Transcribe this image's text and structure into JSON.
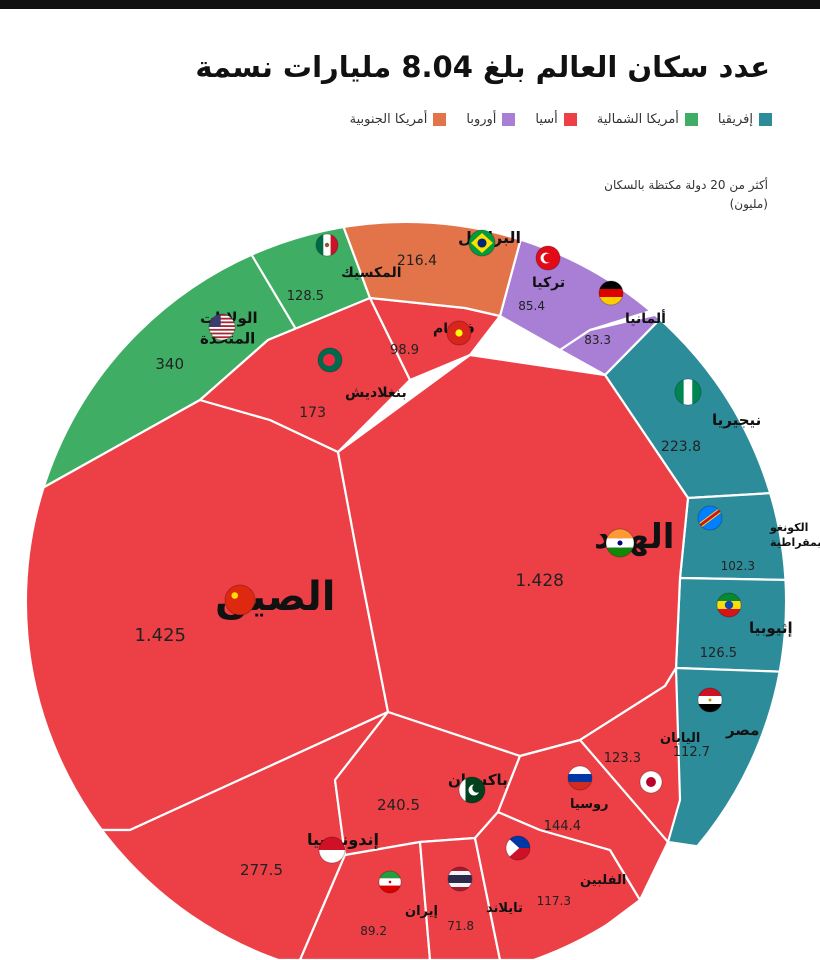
{
  "title": "عدد سكان العالم بلغ 8.04 مليارات نسمة",
  "note": "أكثر من 20 دولة مكتظة بالسكان (مليون)",
  "colors": {
    "africa": "#2d8c9a",
    "north_america": "#3fae64",
    "asia": "#ec3f46",
    "europe": "#a97fd6",
    "south_america": "#e3744a"
  },
  "legend": [
    {
      "label": "إفريقيا",
      "color": "#2d8c9a"
    },
    {
      "label": "أمريكا الشمالية",
      "color": "#3fae64"
    },
    {
      "label": "أسيا",
      "color": "#ec3f46"
    },
    {
      "label": "أوروبا",
      "color": "#a97fd6"
    },
    {
      "label": "أمريكا الجنوبية",
      "color": "#e3744a"
    }
  ],
  "chart_data": {
    "type": "voronoi-treemap",
    "title": "عدد سكان العالم بلغ 8.04 مليارات نسمة",
    "unit": "مليون",
    "series": [
      {
        "name": "إفريقيا",
        "items": [
          {
            "country": "نيجيريا",
            "value": "223.8",
            "flag": "nigeria-flag"
          },
          {
            "country": "الكونغو الديمقراطية",
            "value": "102.3",
            "flag": "dr-congo-flag"
          },
          {
            "country": "إثيوبيا",
            "value": "126.5",
            "flag": "ethiopia-flag"
          },
          {
            "country": "مصر",
            "value": "112.7",
            "flag": "egypt-flag"
          }
        ]
      },
      {
        "name": "أمريكا الشمالية",
        "items": [
          {
            "country": "الولايات المتحدة",
            "value": "340",
            "flag": "usa-flag"
          },
          {
            "country": "المكسيك",
            "value": "128.5",
            "flag": "mexico-flag"
          }
        ]
      },
      {
        "name": "أسيا",
        "items": [
          {
            "country": "الصين",
            "value": "1.425",
            "flag": "china-flag"
          },
          {
            "country": "الهند",
            "value": "1.428",
            "flag": "india-flag"
          },
          {
            "country": "بنغلاديش",
            "value": "173",
            "flag": "bangladesh-flag"
          },
          {
            "country": "فيتنام",
            "value": "98.9",
            "flag": "vietnam-flag"
          },
          {
            "country": "إندونيسيا",
            "value": "277.5",
            "flag": "indonesia-flag"
          },
          {
            "country": "باكستان",
            "value": "240.5",
            "flag": "pakistan-flag"
          },
          {
            "country": "إيران",
            "value": "89.2",
            "flag": "iran-flag"
          },
          {
            "country": "تايلاند",
            "value": "71.8",
            "flag": "thailand-flag"
          },
          {
            "country": "الفلبين",
            "value": "117.3",
            "flag": "philippines-flag"
          },
          {
            "country": "روسيا",
            "value": "144.4",
            "flag": "russia-flag"
          },
          {
            "country": "اليابان",
            "value": "123.3",
            "flag": "japan-flag"
          }
        ]
      },
      {
        "name": "أوروبا",
        "items": [
          {
            "country": "تركيا",
            "value": "85.4",
            "flag": "turkey-flag"
          },
          {
            "country": "ألمانيا",
            "value": "83.3",
            "flag": "germany-flag"
          }
        ]
      },
      {
        "name": "أمريكا الجنوبية",
        "items": [
          {
            "country": "البرازيل",
            "value": "216.4",
            "flag": "brazil-flag"
          }
        ]
      }
    ]
  }
}
